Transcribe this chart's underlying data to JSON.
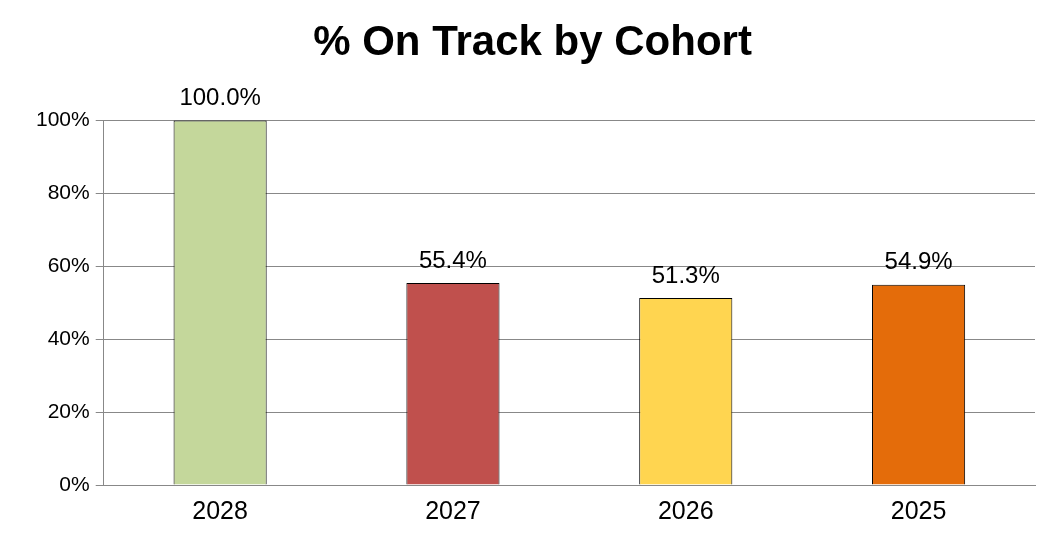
{
  "chart_data": {
    "type": "bar",
    "title": "% On Track by Cohort",
    "categories": [
      "2028",
      "2027",
      "2026",
      "2025"
    ],
    "values": [
      100,
      55.4,
      51.3,
      54.9
    ],
    "colors": [
      "#c4d79b",
      "#c0504d",
      "#ffd550",
      "#e46c0a"
    ],
    "value_labels": [
      "100.0%",
      "55.4%",
      "51.3%",
      "54.9%"
    ],
    "ylim": [
      0,
      100
    ],
    "yticks": [
      {
        "value": 0,
        "label": "0%"
      },
      {
        "value": 20,
        "label": "20%"
      },
      {
        "value": 40,
        "label": "40%"
      },
      {
        "value": 60,
        "label": "60%"
      },
      {
        "value": 80,
        "label": "80%"
      },
      {
        "value": 100,
        "label": "100%"
      }
    ],
    "grid": "y",
    "legend": false
  }
}
